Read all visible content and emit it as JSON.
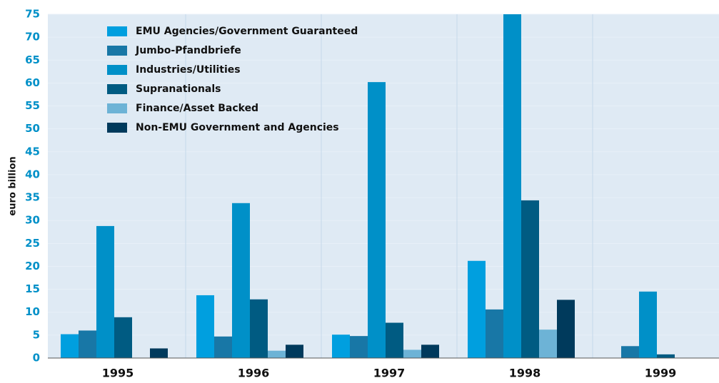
{
  "chart_data": {
    "type": "bar",
    "y_label": "euro billion",
    "categories": [
      "1995",
      "1996",
      "1997",
      "1998",
      "1999"
    ],
    "series": [
      {
        "name": "EMU Agencies/Government Guaranteed",
        "color": "#009fdf",
        "values": [
          5.2,
          13.7,
          5.1,
          21.2,
          0
        ]
      },
      {
        "name": "Jumbo-Pfandbriefe",
        "color": "#1877a6",
        "values": [
          6,
          4.7,
          4.8,
          10.6,
          2.6
        ]
      },
      {
        "name": "Industries/Utilities",
        "color": "#0090c8",
        "values": [
          28.8,
          33.8,
          60.2,
          75,
          14.5
        ]
      },
      {
        "name": "Supranationals",
        "color": "#005b82",
        "values": [
          8.9,
          12.8,
          7.7,
          34.4,
          0.8
        ]
      },
      {
        "name": "Finance/Asset Backed",
        "color": "#6db3d6",
        "values": [
          0,
          1.6,
          1.8,
          6.2,
          0
        ]
      },
      {
        "name": "Non-EMU Government and Agencies",
        "color": "#003a5c",
        "values": [
          2.1,
          2.9,
          2.9,
          12.7,
          0
        ]
      }
    ],
    "ylim": [
      0,
      75
    ],
    "yticks": [
      0,
      5,
      10,
      15,
      20,
      25,
      30,
      35,
      40,
      45,
      50,
      55,
      60,
      65,
      70,
      75
    ],
    "grid": true
  }
}
